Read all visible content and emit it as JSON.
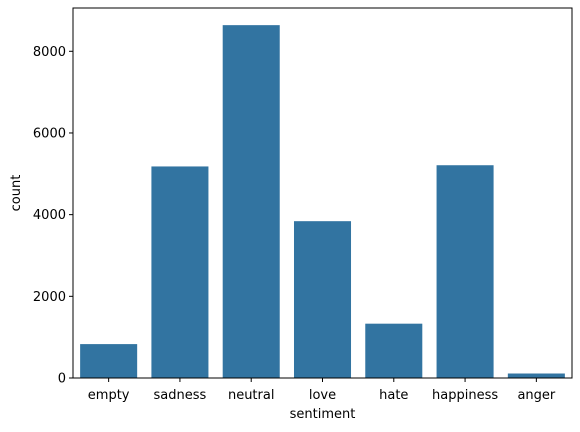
{
  "chart_data": {
    "type": "bar",
    "title": "",
    "xlabel": "sentiment",
    "ylabel": "count",
    "categories": [
      "empty",
      "sadness",
      "neutral",
      "love",
      "hate",
      "happiness",
      "anger"
    ],
    "values": [
      830,
      5180,
      8640,
      3840,
      1330,
      5210,
      110
    ],
    "ylim": [
      0,
      9060
    ],
    "yticks": [
      0,
      2000,
      4000,
      6000,
      8000
    ],
    "ytick_labels": [
      "0",
      "2000",
      "4000",
      "6000",
      "8000"
    ],
    "grid": false,
    "legend": "none",
    "bar_color": "#3274a1"
  }
}
